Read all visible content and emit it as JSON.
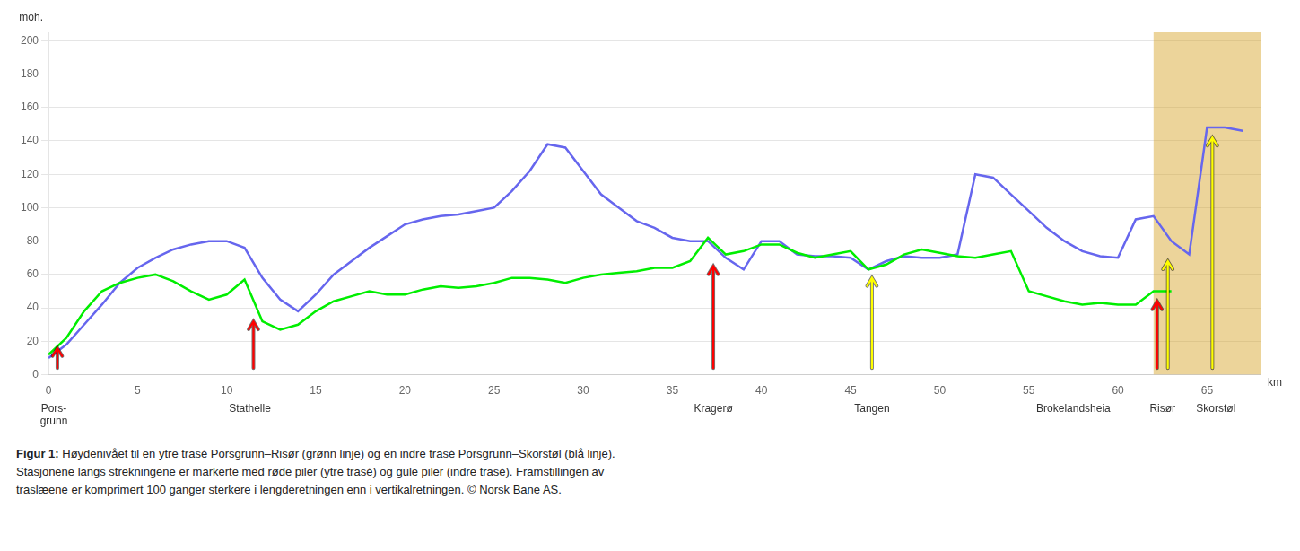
{
  "chart_data": {
    "type": "line",
    "x_label": "km",
    "y_label": "moh.",
    "xlim": [
      0,
      68
    ],
    "ylim": [
      0,
      205
    ],
    "xticks": [
      0,
      5,
      10,
      15,
      20,
      25,
      30,
      35,
      40,
      45,
      50,
      55,
      60,
      65
    ],
    "yticks": [
      0,
      20,
      40,
      60,
      80,
      100,
      120,
      140,
      160,
      180,
      200
    ],
    "grid": "y",
    "series": [
      {
        "color": "#00EE00",
        "x": [
          0,
          1,
          2,
          3,
          4,
          5,
          6,
          7,
          8,
          9,
          10,
          11,
          12,
          13,
          14,
          15,
          16,
          17,
          18,
          19,
          20,
          21,
          22,
          23,
          24,
          25,
          26,
          27,
          28,
          29,
          30,
          31,
          32,
          33,
          34,
          35,
          36,
          37,
          38,
          39,
          40,
          41,
          42,
          43,
          44,
          45,
          46,
          47,
          48,
          49,
          50,
          51,
          52,
          53,
          54,
          55,
          56,
          57,
          58,
          59,
          60,
          61,
          62,
          63
        ],
        "values": [
          12,
          22,
          38,
          50,
          55,
          58,
          60,
          56,
          50,
          45,
          48,
          57,
          32,
          27,
          30,
          38,
          44,
          47,
          50,
          48,
          48,
          51,
          53,
          52,
          53,
          55,
          58,
          58,
          57,
          55,
          58,
          60,
          61,
          62,
          64,
          64,
          68,
          82,
          72,
          74,
          78,
          78,
          73,
          70,
          72,
          74,
          63,
          66,
          72,
          75,
          73,
          71,
          70,
          72,
          74,
          50,
          47,
          44,
          42,
          43,
          42,
          42,
          50,
          50
        ]
      },
      {
        "color": "#6666EE",
        "x": [
          0,
          1,
          2,
          3,
          4,
          5,
          6,
          7,
          8,
          9,
          10,
          11,
          12,
          13,
          14,
          15,
          16,
          17,
          18,
          19,
          20,
          21,
          22,
          23,
          24,
          25,
          26,
          27,
          28,
          29,
          30,
          31,
          32,
          33,
          34,
          35,
          36,
          37,
          38,
          39,
          40,
          41,
          42,
          43,
          44,
          45,
          46,
          47,
          48,
          49,
          50,
          51,
          52,
          53,
          54,
          55,
          56,
          57,
          58,
          59,
          60,
          61,
          62,
          63,
          64,
          65,
          66,
          67
        ],
        "values": [
          10,
          18,
          30,
          42,
          55,
          64,
          70,
          75,
          78,
          80,
          80,
          76,
          58,
          45,
          38,
          48,
          60,
          68,
          76,
          83,
          90,
          93,
          95,
          96,
          98,
          100,
          110,
          122,
          138,
          136,
          122,
          108,
          100,
          92,
          88,
          82,
          80,
          80,
          70,
          63,
          80,
          80,
          72,
          71,
          71,
          70,
          63,
          68,
          71,
          70,
          70,
          72,
          120,
          118,
          108,
          98,
          88,
          80,
          74,
          71,
          70,
          93,
          95,
          80,
          72,
          148,
          148,
          146
        ]
      }
    ],
    "arrows": [
      {
        "x": 0.5,
        "y_base": 4,
        "y_tip": 16,
        "color": "red"
      },
      {
        "x": 11.5,
        "y_base": 4,
        "y_tip": 32,
        "color": "red"
      },
      {
        "x": 37.3,
        "y_base": 4,
        "y_tip": 65,
        "color": "red"
      },
      {
        "x": 62.2,
        "y_base": 4,
        "y_tip": 44,
        "color": "red"
      },
      {
        "x": 46.2,
        "y_base": 4,
        "y_tip": 58,
        "color": "yellow"
      },
      {
        "x": 62.8,
        "y_base": 4,
        "y_tip": 68,
        "color": "yellow"
      },
      {
        "x": 65.3,
        "y_base": 4,
        "y_tip": 142,
        "color": "yellow"
      }
    ],
    "highlight": {
      "x": [
        62.0,
        68.0
      ],
      "color": "#D4A020"
    },
    "station_labels": [
      {
        "x": 0.3,
        "text": "Pors-\ngrunn"
      },
      {
        "x": 11.3,
        "text": "Stathelle"
      },
      {
        "x": 37.3,
        "text": "Kragerø"
      },
      {
        "x": 46.2,
        "text": "Tangen"
      },
      {
        "x": 57.5,
        "text": "Brokelandsheia"
      },
      {
        "x": 62.5,
        "text": "Risør"
      },
      {
        "x": 65.5,
        "text": "Skorstøl"
      }
    ],
    "caption": {
      "bold": "Figur 1:",
      "lines": [
        " Høydenivået til en ytre trasé Porsgrunn–Risør (grønn linje) og en indre trasé Porsgrunn–Skorstøl (blå linje).",
        "Stasjonene langs strekningene er markerte med røde piler (ytre trasé) og gule piler (indre trasé). Framstillingen av",
        "traslæene er komprimert 100 ganger sterkere i lengderetningen enn i vertikalretningen. © Norsk Bane AS."
      ]
    }
  }
}
